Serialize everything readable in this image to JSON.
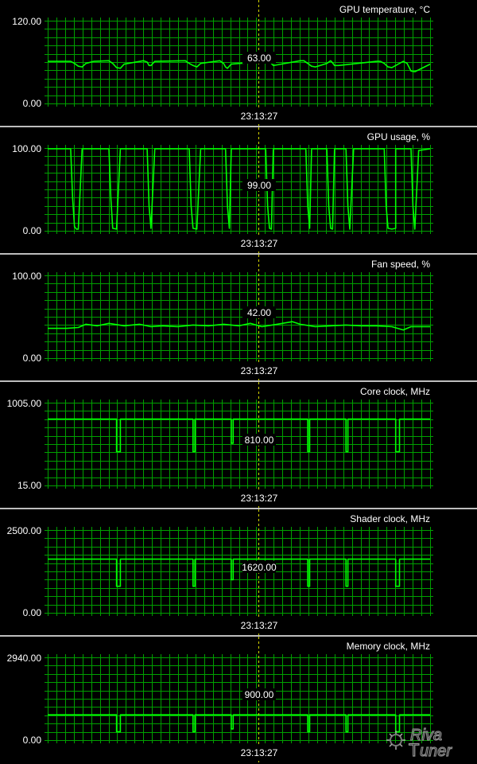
{
  "chart_data": [
    {
      "type": "line",
      "title": "GPU temperature, °C",
      "ylim": [
        0,
        120
      ],
      "ytick_labels": [
        "120.00",
        "0.00"
      ],
      "cursor_value": "63.00",
      "cursor_time": "23:13:27",
      "series": [
        {
          "x": [
            0,
            0.06,
            0.07,
            0.08,
            0.09,
            0.1,
            0.12,
            0.16,
            0.17,
            0.18,
            0.19,
            0.2,
            0.25,
            0.26,
            0.265,
            0.27,
            0.28,
            0.36,
            0.37,
            0.38,
            0.39,
            0.4,
            0.45,
            0.46,
            0.465,
            0.47,
            0.48,
            0.57,
            0.58,
            0.585,
            0.59,
            0.6,
            0.66,
            0.67,
            0.68,
            0.69,
            0.7,
            0.73,
            0.74,
            0.745,
            0.75,
            0.76,
            0.86,
            0.87,
            0.88,
            0.89,
            0.9,
            0.92,
            0.93,
            0.94,
            0.95,
            0.96,
            1.0
          ],
          "y": [
            61,
            61,
            58,
            54,
            53,
            58,
            61,
            62,
            58,
            52,
            51,
            57,
            62,
            60,
            55,
            55,
            61,
            62,
            58,
            55,
            53,
            58,
            62,
            58,
            53,
            51,
            57,
            61,
            62,
            58,
            55,
            56,
            62,
            62,
            58,
            54,
            53,
            58,
            62,
            59,
            55,
            55,
            61,
            61,
            58,
            53,
            52,
            58,
            61,
            58,
            47,
            46,
            57
          ]
        }
      ]
    },
    {
      "type": "line",
      "title": "GPU usage, %",
      "ylim": [
        0,
        100
      ],
      "ytick_labels": [
        "100.00",
        "0.00"
      ],
      "cursor_value": "99.00",
      "cursor_time": "23:13:27",
      "series": [
        {
          "x": [
            0,
            0.06,
            0.065,
            0.07,
            0.075,
            0.08,
            0.09,
            0.16,
            0.165,
            0.17,
            0.18,
            0.19,
            0.26,
            0.265,
            0.27,
            0.28,
            0.37,
            0.375,
            0.38,
            0.39,
            0.4,
            0.465,
            0.47,
            0.475,
            0.48,
            0.57,
            0.575,
            0.58,
            0.585,
            0.59,
            0.675,
            0.68,
            0.685,
            0.69,
            0.73,
            0.735,
            0.74,
            0.745,
            0.75,
            0.78,
            0.785,
            0.79,
            0.8,
            0.88,
            0.885,
            0.89,
            0.9,
            0.91,
            0.91,
            0.95,
            0.955,
            0.96,
            0.97,
            1.0
          ],
          "y": [
            99,
            99,
            40,
            5,
            2,
            2,
            99,
            99,
            40,
            3,
            2,
            99,
            99,
            30,
            3,
            99,
            99,
            30,
            3,
            2,
            99,
            99,
            30,
            3,
            99,
            99,
            30,
            3,
            2,
            99,
            99,
            30,
            3,
            99,
            99,
            30,
            3,
            2,
            99,
            99,
            30,
            2,
            99,
            99,
            30,
            3,
            2,
            3,
            99,
            99,
            30,
            2,
            97,
            99
          ]
        }
      ]
    },
    {
      "type": "line",
      "title": "Fan speed, %",
      "ylim": [
        0,
        100
      ],
      "ytick_labels": [
        "100.00",
        "0.00"
      ],
      "cursor_value": "42.00",
      "cursor_time": "23:13:27",
      "series": [
        {
          "x": [
            0,
            0.05,
            0.08,
            0.1,
            0.13,
            0.16,
            0.2,
            0.24,
            0.27,
            0.3,
            0.34,
            0.38,
            0.42,
            0.46,
            0.5,
            0.53,
            0.56,
            0.6,
            0.64,
            0.66,
            0.7,
            0.74,
            0.78,
            0.82,
            0.86,
            0.9,
            0.93,
            0.95,
            0.97,
            1.0
          ],
          "y": [
            36,
            36,
            37,
            41,
            39,
            42,
            39,
            41,
            38,
            39,
            38,
            40,
            39,
            41,
            39,
            42,
            38,
            41,
            44,
            41,
            38,
            39,
            40,
            39,
            39,
            38,
            34,
            38,
            38,
            38
          ]
        }
      ]
    },
    {
      "type": "line",
      "title": "Core clock, MHz",
      "ylim": [
        15,
        1005
      ],
      "ytick_labels": [
        "1005.00",
        "15.00"
      ],
      "cursor_value": "810.00",
      "cursor_time": "23:13:27",
      "series": [
        {
          "x": [
            0,
            0.18,
            0.18,
            0.19,
            0.19,
            0.38,
            0.38,
            0.385,
            0.385,
            0.48,
            0.48,
            0.485,
            0.485,
            0.68,
            0.68,
            0.685,
            0.685,
            0.78,
            0.78,
            0.785,
            0.785,
            0.91,
            0.91,
            0.92,
            0.92,
            1.0
          ],
          "y": [
            810,
            810,
            420,
            420,
            810,
            810,
            420,
            420,
            810,
            810,
            520,
            520,
            810,
            810,
            420,
            420,
            810,
            810,
            420,
            420,
            810,
            810,
            420,
            420,
            810,
            810
          ]
        }
      ]
    },
    {
      "type": "line",
      "title": "Shader clock, MHz",
      "ylim": [
        0,
        2500
      ],
      "ytick_labels": [
        "2500.00",
        "0.00"
      ],
      "cursor_value": "1620.00",
      "cursor_time": "23:13:27",
      "series": [
        {
          "x": [
            0,
            0.18,
            0.18,
            0.19,
            0.19,
            0.38,
            0.38,
            0.385,
            0.385,
            0.48,
            0.48,
            0.485,
            0.485,
            0.68,
            0.68,
            0.685,
            0.685,
            0.78,
            0.78,
            0.785,
            0.785,
            0.91,
            0.91,
            0.92,
            0.92,
            1.0
          ],
          "y": [
            1620,
            1620,
            800,
            800,
            1620,
            1620,
            800,
            800,
            1620,
            1620,
            1000,
            1000,
            1620,
            1620,
            800,
            800,
            1620,
            1620,
            800,
            800,
            1620,
            1620,
            800,
            800,
            1620,
            1620
          ]
        }
      ]
    },
    {
      "type": "line",
      "title": "Memory clock, MHz",
      "ylim": [
        0,
        2940
      ],
      "ytick_labels": [
        "2940.00",
        "0.00"
      ],
      "cursor_value": "900.00",
      "cursor_time": "23:13:27",
      "series": [
        {
          "x": [
            0,
            0.18,
            0.18,
            0.19,
            0.19,
            0.38,
            0.38,
            0.385,
            0.385,
            0.48,
            0.48,
            0.485,
            0.485,
            0.68,
            0.68,
            0.685,
            0.685,
            0.78,
            0.78,
            0.785,
            0.785,
            0.91,
            0.91,
            0.92,
            0.92,
            1.0
          ],
          "y": [
            900,
            900,
            300,
            300,
            900,
            900,
            300,
            300,
            900,
            900,
            400,
            400,
            900,
            900,
            300,
            300,
            900,
            900,
            300,
            300,
            900,
            900,
            300,
            300,
            900,
            900
          ]
        }
      ]
    }
  ],
  "logo_text": "RivaTuner",
  "colors": {
    "grid": "#00a000",
    "line": "#00ff00",
    "cursor": "#d6d600",
    "separator": "#bdbdbd",
    "text": "#ffffff"
  }
}
